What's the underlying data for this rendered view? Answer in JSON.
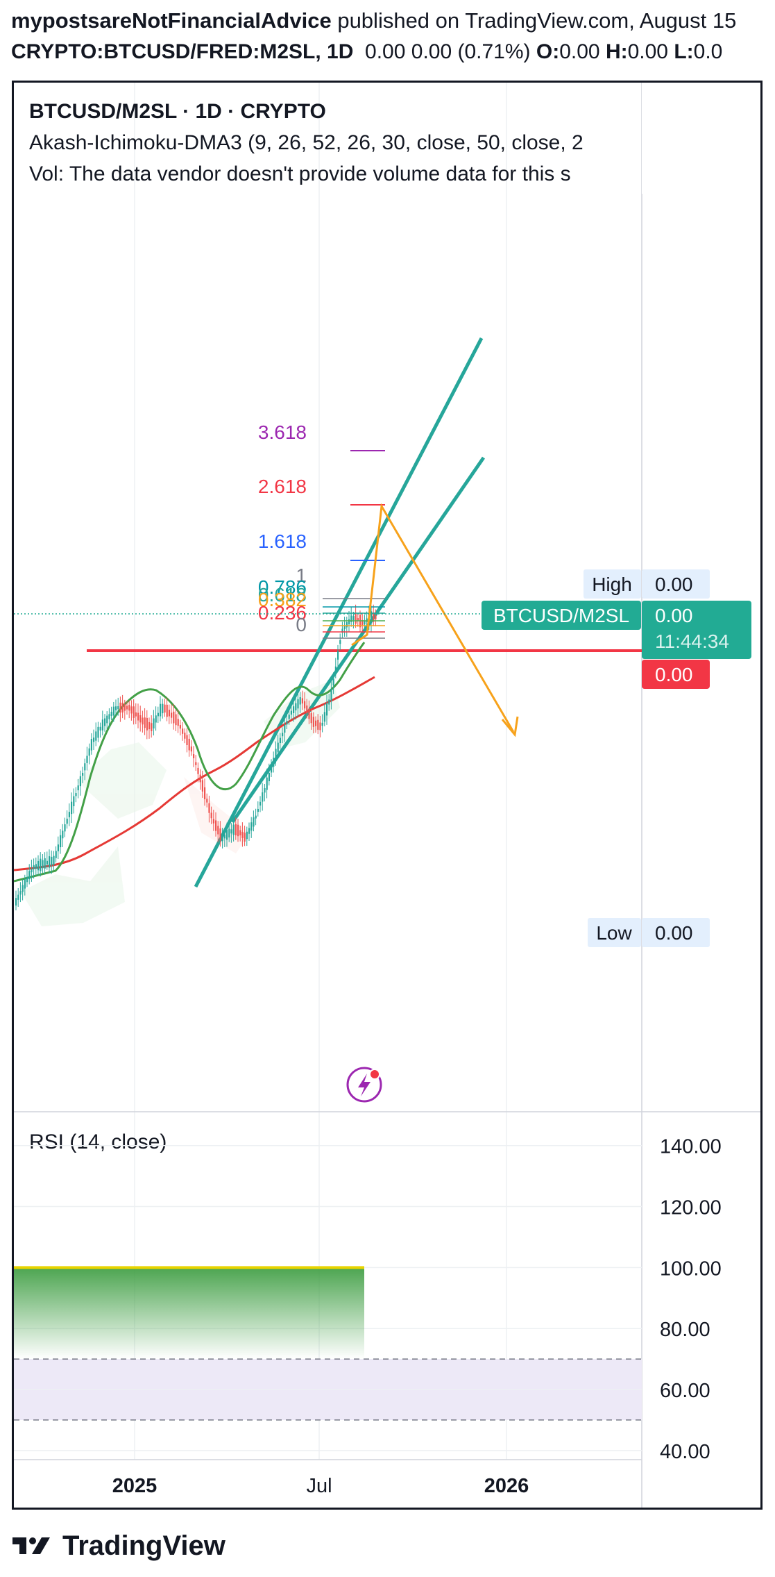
{
  "header": {
    "author": "mypostsareNotFinancialAdvice",
    "published_text": "published on TradingView.com, August 15",
    "symbol": "CRYPTO:BTCUSD/FRED:M2SL, 1D",
    "change": "0.00 0.00 (0.71%)",
    "o_label": "O:",
    "o_value": "0.00",
    "h_label": "H:",
    "h_value": "0.00",
    "l_label": "L:",
    "l_value": "0.0"
  },
  "legend": {
    "title": "BTCUSD/M2SL · 1D · CRYPTO",
    "indicator": "Akash-Ichimoku-DMA3 (9, 26, 52, 26, 30, close, 50, close, 2",
    "volume_note": "Vol: The data vendor doesn't provide volume data for this s"
  },
  "price_labels": {
    "high_label": "High",
    "high_value": "0.00",
    "symbol_tag": "BTCUSD/M2SL",
    "last_value": "0.00",
    "countdown": "11:44:34",
    "red_value": "0.00",
    "low_label": "Low",
    "low_value": "0.00"
  },
  "fib_levels": [
    "3.618",
    "2.618",
    "1.618",
    "1",
    "0.786",
    "0.618",
    "0.382",
    "0.236",
    "0"
  ],
  "rsi": {
    "title": "RSI (14, close)"
  },
  "colors": {
    "channel": "#26a69a",
    "projection": "#f7a21b",
    "resistance": "#f23645",
    "ma_long": "#e53935",
    "ma_short": "#43a047",
    "rsi_fill": "#4caf50",
    "rsi_band": "#ede9f7",
    "last_price": "#22ab94"
  },
  "brand": {
    "name": "TradingView"
  },
  "chart_data": [
    {
      "type": "line",
      "title": "BTCUSD/M2SL · 1D · CRYPTO",
      "x_tick_labels": [
        "2025",
        "Jul",
        "2026"
      ],
      "annotations": [
        "High",
        "Low",
        "BTCUSD/M2SL",
        "11:44:34"
      ],
      "y_values_printed": [
        "0.00"
      ]
    },
    {
      "type": "area",
      "title": "RSI (14, close)",
      "y_tick_labels": [
        "140.00",
        "120.00",
        "100.00",
        "80.00",
        "60.00",
        "40.00"
      ],
      "ylim": [
        37,
        147
      ],
      "band": [
        50,
        70
      ],
      "series": [
        {
          "name": "RSI (14, close)",
          "values": [
            100,
            100
          ]
        }
      ]
    }
  ]
}
